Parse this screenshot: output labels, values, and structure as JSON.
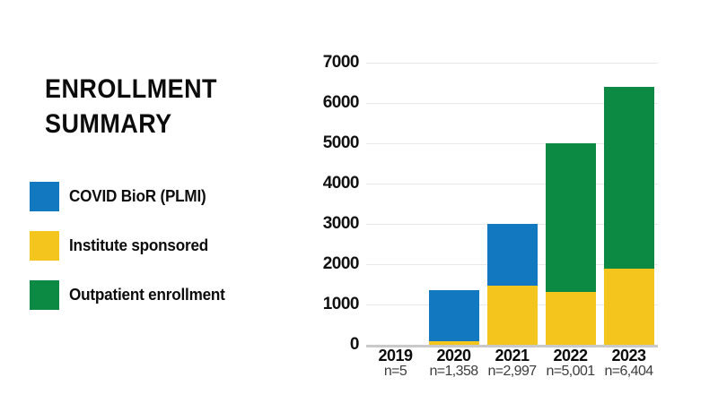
{
  "title": {
    "line1": "ENROLLMENT",
    "line2": "SUMMARY"
  },
  "legend": [
    {
      "name": "covid-bior-plmi",
      "label": "COVID BioR (PLMI)",
      "color": "#1278bf"
    },
    {
      "name": "institute-sponsored",
      "label": "Institute sponsored",
      "color": "#f3c51d"
    },
    {
      "name": "outpatient-enrollment",
      "label": "Outpatient enrollment",
      "color": "#0c8a43"
    }
  ],
  "chart_data": {
    "type": "bar",
    "stacked": true,
    "title": "Enrollment Summary",
    "categories": [
      "2019",
      "2020",
      "2021",
      "2022",
      "2023"
    ],
    "n_labels": [
      "n=5",
      "n=1,358",
      "n=2,997",
      "n=5,001",
      "n=6,404"
    ],
    "totals": [
      5,
      1358,
      2997,
      5001,
      6404
    ],
    "series": [
      {
        "name": "Institute sponsored",
        "color": "#f3c51d",
        "values": [
          0,
          85,
          1470,
          1310,
          1890
        ]
      },
      {
        "name": "COVID BioR (PLMI)",
        "color": "#1278bf",
        "values": [
          5,
          1273,
          1527,
          0,
          0
        ]
      },
      {
        "name": "Outpatient enrollment",
        "color": "#0c8a43",
        "values": [
          0,
          0,
          0,
          3691,
          4514
        ]
      }
    ],
    "yticks": [
      0,
      1000,
      2000,
      3000,
      4000,
      5000,
      6000,
      7000
    ],
    "ylim": [
      0,
      7000
    ],
    "grid": true,
    "legend_position": "left",
    "colors": {
      "gridline": "#e8e8e8",
      "axis_line": "#c9c9c9",
      "tick_text": "#111111",
      "n_text": "#3d3d3d"
    }
  }
}
